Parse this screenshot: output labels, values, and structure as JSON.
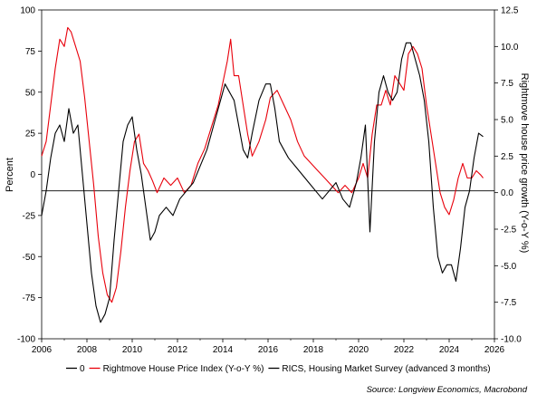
{
  "chart_data": {
    "type": "line",
    "ylabel_left": "Percent",
    "ylabel_right": "Rightmove house price growth (Y-o-Y %)",
    "xlim": [
      2006,
      2026
    ],
    "ylim_left": [
      -100,
      100
    ],
    "ylim_right": [
      -10,
      12.5
    ],
    "x_ticks": [
      "2006",
      "2008",
      "2010",
      "2012",
      "2014",
      "2016",
      "2018",
      "2020",
      "2022",
      "2024",
      "2026"
    ],
    "y_left_ticks": [
      "100",
      "75",
      "50",
      "25",
      "0",
      "-25",
      "-50",
      "-75",
      "-100"
    ],
    "y_right_ticks": [
      "12.5",
      "10.0",
      "7.5",
      "5.0",
      "2.5",
      "0.0",
      "-2.5",
      "-5.0",
      "-7.5",
      "-10.0"
    ],
    "legend": [
      {
        "label": "0",
        "color": "#000000",
        "width": 0.9
      },
      {
        "label": "Rightmove House Price Index (Y-o-Y %)",
        "color": "#e8000b",
        "width": 1.0
      },
      {
        "label": "RICS, Housing Market Survey (advanced 3 months)",
        "color": "#000000",
        "width": 1.0
      }
    ],
    "source": "Source: Longview Economics, Macrobond",
    "series": [
      {
        "name": "Rightmove House Price Index (Y-o-Y %)",
        "axis": "right",
        "color": "#e8000b",
        "x": [
          2006.0,
          2006.2,
          2006.4,
          2006.6,
          2006.8,
          2007.0,
          2007.15,
          2007.3,
          2007.5,
          2007.7,
          2007.9,
          2008.1,
          2008.3,
          2008.5,
          2008.7,
          2008.9,
          2009.1,
          2009.3,
          2009.5,
          2009.7,
          2009.9,
          2010.1,
          2010.3,
          2010.5,
          2010.7,
          2010.9,
          2011.1,
          2011.4,
          2011.7,
          2012.0,
          2012.3,
          2012.6,
          2012.9,
          2013.2,
          2013.5,
          2013.8,
          2014.0,
          2014.2,
          2014.35,
          2014.5,
          2014.7,
          2014.9,
          2015.1,
          2015.3,
          2015.6,
          2015.9,
          2016.1,
          2016.4,
          2016.7,
          2017.0,
          2017.3,
          2017.6,
          2017.9,
          2018.2,
          2018.5,
          2018.8,
          2019.1,
          2019.4,
          2019.7,
          2020.0,
          2020.2,
          2020.4,
          2020.6,
          2020.8,
          2021.0,
          2021.2,
          2021.4,
          2021.6,
          2021.8,
          2022.0,
          2022.2,
          2022.4,
          2022.6,
          2022.8,
          2023.0,
          2023.2,
          2023.4,
          2023.6,
          2023.8,
          2024.0,
          2024.2,
          2024.4,
          2024.6,
          2024.8,
          2025.0,
          2025.2,
          2025.4,
          2025.5
        ],
        "y": [
          2.5,
          3.5,
          6.0,
          8.5,
          10.5,
          10.0,
          11.3,
          11.0,
          10.0,
          9.0,
          6.5,
          3.5,
          0.5,
          -3.0,
          -5.5,
          -7.0,
          -7.5,
          -6.5,
          -4.0,
          -1.0,
          1.5,
          3.5,
          4.0,
          2.0,
          1.5,
          0.8,
          0.0,
          1.0,
          0.5,
          1.0,
          0.0,
          0.5,
          2.0,
          3.0,
          4.5,
          6.0,
          7.5,
          9.0,
          10.5,
          8.0,
          8.0,
          6.0,
          4.0,
          2.5,
          3.5,
          5.0,
          6.5,
          7.0,
          6.0,
          5.0,
          3.5,
          2.5,
          2.0,
          1.5,
          1.0,
          0.5,
          0.0,
          0.5,
          0.0,
          1.0,
          2.0,
          1.0,
          4.0,
          6.0,
          6.0,
          7.0,
          6.0,
          8.0,
          7.5,
          7.0,
          9.5,
          10.0,
          9.5,
          8.5,
          6.0,
          4.0,
          2.0,
          0.0,
          -1.0,
          -1.5,
          -0.5,
          1.0,
          2.0,
          1.0,
          1.0,
          1.5,
          1.2,
          1.0
        ]
      },
      {
        "name": "RICS, Housing Market Survey (advanced 3 months)",
        "axis": "left",
        "color": "#000000",
        "x": [
          2006.0,
          2006.2,
          2006.4,
          2006.6,
          2006.8,
          2007.0,
          2007.2,
          2007.4,
          2007.6,
          2007.8,
          2008.0,
          2008.2,
          2008.4,
          2008.6,
          2008.8,
          2009.0,
          2009.2,
          2009.4,
          2009.6,
          2009.8,
          2010.0,
          2010.2,
          2010.4,
          2010.6,
          2010.8,
          2011.0,
          2011.2,
          2011.5,
          2011.8,
          2012.1,
          2012.4,
          2012.7,
          2013.0,
          2013.3,
          2013.6,
          2013.9,
          2014.1,
          2014.3,
          2014.5,
          2014.7,
          2014.9,
          2015.1,
          2015.3,
          2015.6,
          2015.9,
          2016.1,
          2016.3,
          2016.5,
          2016.7,
          2016.9,
          2017.2,
          2017.5,
          2017.8,
          2018.1,
          2018.4,
          2018.7,
          2019.0,
          2019.3,
          2019.6,
          2019.9,
          2020.1,
          2020.3,
          2020.5,
          2020.7,
          2020.9,
          2021.1,
          2021.3,
          2021.5,
          2021.7,
          2021.9,
          2022.1,
          2022.3,
          2022.5,
          2022.7,
          2022.9,
          2023.1,
          2023.3,
          2023.5,
          2023.7,
          2023.9,
          2024.1,
          2024.3,
          2024.5,
          2024.7,
          2024.9,
          2025.1,
          2025.3,
          2025.5
        ],
        "y": [
          -25,
          -10,
          10,
          25,
          30,
          20,
          40,
          25,
          30,
          0,
          -30,
          -60,
          -80,
          -90,
          -85,
          -75,
          -40,
          -10,
          20,
          30,
          35,
          15,
          0,
          -20,
          -40,
          -35,
          -25,
          -20,
          -25,
          -15,
          -10,
          -5,
          5,
          15,
          30,
          45,
          55,
          50,
          45,
          30,
          15,
          10,
          25,
          45,
          55,
          55,
          40,
          20,
          15,
          10,
          5,
          0,
          -5,
          -10,
          -15,
          -10,
          -5,
          -15,
          -20,
          -5,
          10,
          30,
          -35,
          20,
          50,
          60,
          50,
          45,
          50,
          70,
          80,
          80,
          70,
          60,
          45,
          20,
          -20,
          -50,
          -60,
          -55,
          -55,
          -65,
          -45,
          -20,
          -10,
          10,
          25,
          23
        ]
      }
    ]
  }
}
